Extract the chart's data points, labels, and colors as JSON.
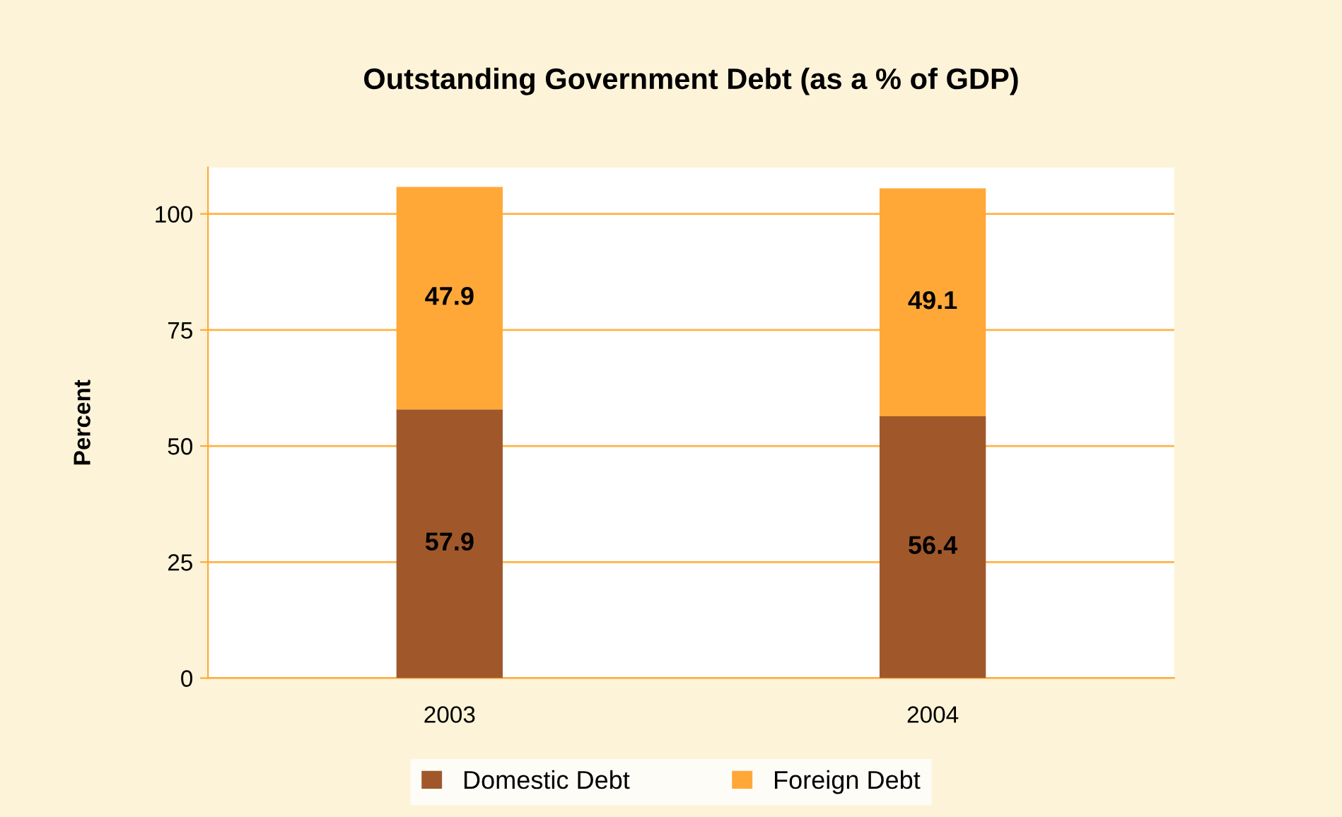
{
  "chart_data": {
    "type": "bar",
    "title": "Outstanding Government Debt (as a % of GDP)",
    "ylabel": "Percent",
    "categories": [
      "2003",
      "2004"
    ],
    "stacked": true,
    "series": [
      {
        "name": "Domestic Debt",
        "color": "#a0582a",
        "values": [
          57.9,
          56.4
        ]
      },
      {
        "name": "Foreign Debt",
        "color": "#ffa838",
        "values": [
          47.9,
          49.1
        ]
      }
    ],
    "ylim": [
      0,
      110
    ],
    "yticks": [
      0,
      25,
      50,
      75,
      100
    ],
    "grid": "y",
    "legend": "bottom",
    "data_labels": true
  }
}
